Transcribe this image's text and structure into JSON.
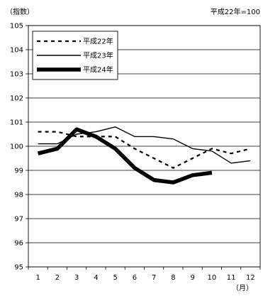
{
  "chart_data": {
    "type": "line",
    "y_unit_label": "（指数）",
    "x_unit_label": "（月）",
    "baseline_note": "平成22年=100",
    "x": [
      1,
      2,
      3,
      4,
      5,
      6,
      7,
      8,
      9,
      10,
      11,
      12
    ],
    "ylim": [
      95,
      105
    ],
    "yticks": [
      95,
      96,
      97,
      98,
      99,
      100,
      101,
      102,
      103,
      104,
      105
    ],
    "grid": true,
    "legend_position": "top-left",
    "series": [
      {
        "name": "平成22年",
        "style": "dashed",
        "color": "#000000",
        "values": [
          100.6,
          100.6,
          100.4,
          100.4,
          100.4,
          99.9,
          99.5,
          99.1,
          99.5,
          99.9,
          99.7,
          99.9
        ]
      },
      {
        "name": "平成23年",
        "style": "thin",
        "color": "#000000",
        "values": [
          100.1,
          100.1,
          100.5,
          100.6,
          100.8,
          100.4,
          100.4,
          100.3,
          99.9,
          99.8,
          99.3,
          99.4
        ]
      },
      {
        "name": "平成24年",
        "style": "thick",
        "color": "#000000",
        "values": [
          99.7,
          99.9,
          100.7,
          100.4,
          99.9,
          99.1,
          98.6,
          98.5,
          98.8,
          98.9,
          null,
          null
        ]
      }
    ]
  }
}
